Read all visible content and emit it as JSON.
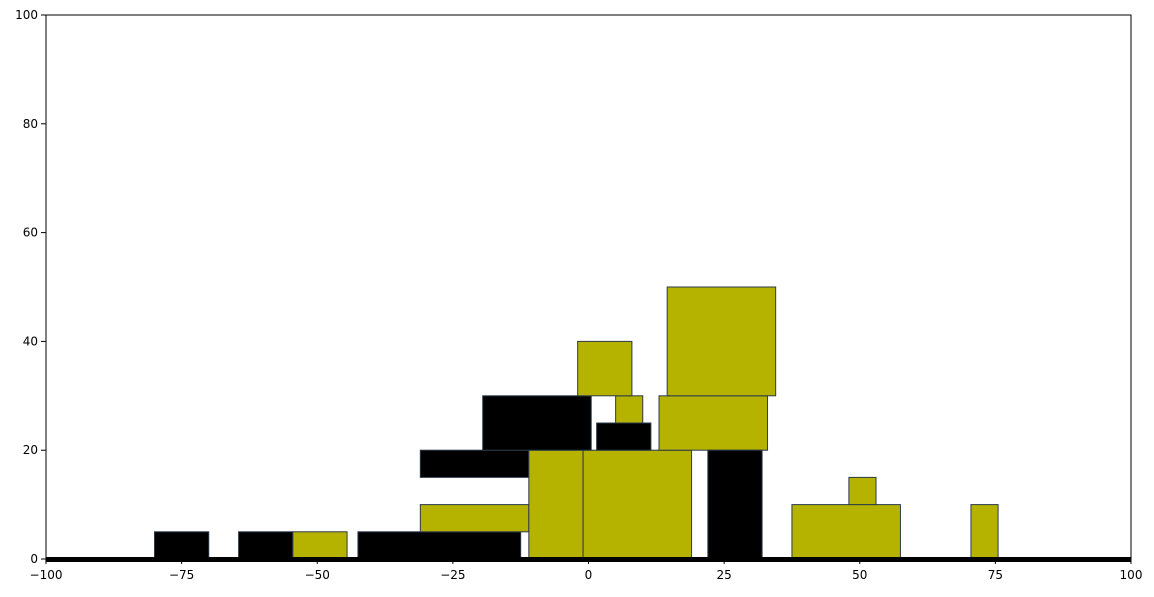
{
  "chart_data": {
    "type": "bar",
    "title": "",
    "xlabel": "",
    "ylabel": "",
    "xlim": [
      -100,
      100
    ],
    "ylim": [
      0,
      100
    ],
    "x_ticks": [
      -100,
      -75,
      -50,
      -25,
      0,
      25,
      50,
      75,
      100
    ],
    "x_tick_labels": [
      "−100",
      "−75",
      "−50",
      "−25",
      "0",
      "25",
      "50",
      "75",
      "100"
    ],
    "y_ticks": [
      0,
      20,
      40,
      60,
      80,
      100
    ],
    "y_tick_labels": [
      "0",
      "20",
      "40",
      "60",
      "80",
      "100"
    ],
    "grid": false,
    "colors": {
      "olive": "#b5b300",
      "black": "#000000",
      "edge": "#2b3a4a"
    },
    "baseline": {
      "x0": -100,
      "x1": 100,
      "y": 0,
      "color": "#000000"
    },
    "bars": [
      {
        "x0": -80,
        "x1": -70,
        "y0": 0,
        "y1": 5,
        "color": "black"
      },
      {
        "x0": -64.5,
        "x1": -54.5,
        "y0": 0,
        "y1": 5,
        "color": "black"
      },
      {
        "x0": -54.5,
        "x1": -44.5,
        "y0": 0,
        "y1": 5,
        "color": "olive"
      },
      {
        "x0": -42.5,
        "x1": -12.5,
        "y0": 0,
        "y1": 5,
        "color": "black"
      },
      {
        "x0": -31,
        "x1": -11,
        "y0": 5,
        "y1": 10,
        "color": "olive"
      },
      {
        "x0": -31,
        "x1": -11,
        "y0": 15,
        "y1": 20,
        "color": "black"
      },
      {
        "x0": -11,
        "x1": -1,
        "y0": 0,
        "y1": 20,
        "color": "olive"
      },
      {
        "x0": -1,
        "x1": 19,
        "y0": 0,
        "y1": 20,
        "color": "olive"
      },
      {
        "x0": -19.5,
        "x1": 0.5,
        "y0": 20,
        "y1": 30,
        "color": "black"
      },
      {
        "x0": 1.5,
        "x1": 11.5,
        "y0": 20,
        "y1": 25,
        "color": "black"
      },
      {
        "x0": 5,
        "x1": 10,
        "y0": 25,
        "y1": 30,
        "color": "olive"
      },
      {
        "x0": -2,
        "x1": 8,
        "y0": 30,
        "y1": 40,
        "color": "olive"
      },
      {
        "x0": 13,
        "x1": 33,
        "y0": 20,
        "y1": 30,
        "color": "olive"
      },
      {
        "x0": 14.5,
        "x1": 34.5,
        "y0": 30,
        "y1": 50,
        "color": "olive"
      },
      {
        "x0": 22,
        "x1": 32,
        "y0": 0,
        "y1": 20,
        "color": "black"
      },
      {
        "x0": 37.5,
        "x1": 57.5,
        "y0": 0,
        "y1": 10,
        "color": "olive"
      },
      {
        "x0": 48,
        "x1": 53,
        "y0": 10,
        "y1": 15,
        "color": "olive"
      },
      {
        "x0": 70.5,
        "x1": 75.5,
        "y0": 0,
        "y1": 10,
        "color": "olive"
      }
    ]
  }
}
